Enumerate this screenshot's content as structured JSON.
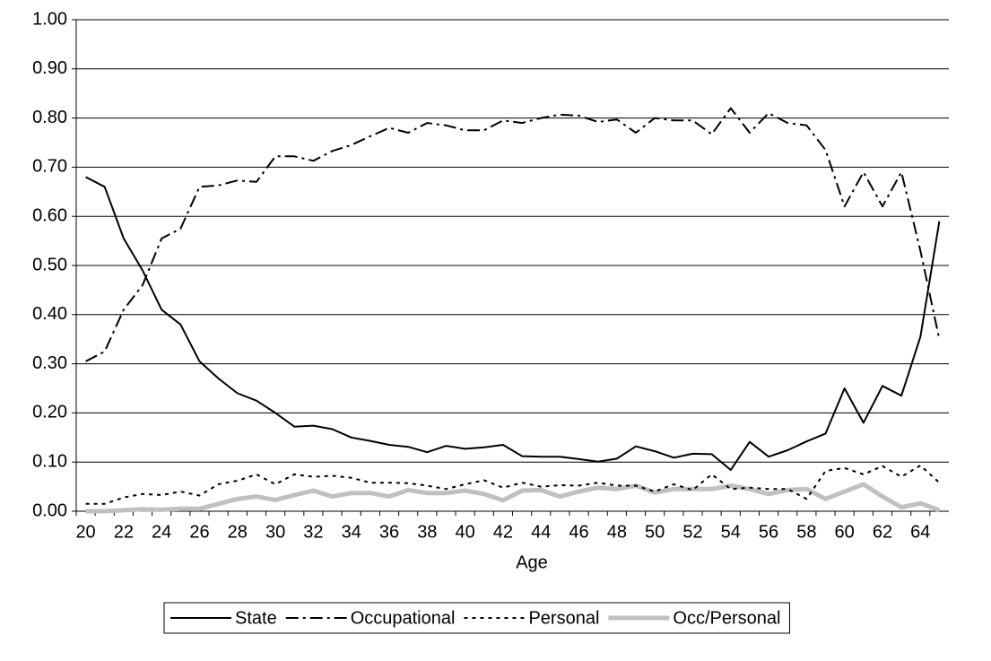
{
  "chart_data": {
    "type": "line",
    "x_label": "Age",
    "categories": [
      20,
      null,
      22,
      null,
      24,
      null,
      26,
      null,
      28,
      null,
      30,
      null,
      32,
      null,
      34,
      null,
      36,
      null,
      38,
      null,
      40,
      null,
      42,
      null,
      44,
      null,
      46,
      null,
      48,
      null,
      50,
      null,
      52,
      null,
      54,
      null,
      56,
      null,
      58,
      null,
      60,
      null,
      62,
      null,
      64,
      null
    ],
    "series": [
      {
        "name": "State",
        "color": "#000000",
        "style": "solid",
        "line_width": 2,
        "values": [
          0.68,
          0.66,
          0.555,
          0.49,
          0.41,
          0.38,
          0.305,
          0.27,
          0.24,
          0.225,
          0.2,
          0.172,
          0.174,
          0.167,
          0.15,
          0.143,
          0.135,
          0.131,
          0.12,
          0.133,
          0.127,
          0.13,
          0.135,
          0.112,
          0.111,
          0.111,
          0.106,
          0.101,
          0.107,
          0.132,
          0.122,
          0.109,
          0.117,
          0.116,
          0.084,
          0.141,
          0.111,
          0.124,
          0.142,
          0.158,
          0.25,
          0.18,
          0.255,
          0.235,
          0.355,
          0.59
        ]
      },
      {
        "name": "Occupational",
        "color": "#000000",
        "style": "dashdot",
        "line_width": 2,
        "values": [
          0.305,
          0.325,
          0.41,
          0.46,
          0.555,
          0.575,
          0.66,
          0.663,
          0.673,
          0.67,
          0.722,
          0.722,
          0.713,
          0.733,
          0.745,
          0.763,
          0.78,
          0.77,
          0.79,
          0.785,
          0.775,
          0.775,
          0.795,
          0.79,
          0.8,
          0.807,
          0.805,
          0.792,
          0.797,
          0.77,
          0.8,
          0.795,
          0.795,
          0.767,
          0.82,
          0.77,
          0.81,
          0.79,
          0.785,
          0.735,
          0.62,
          0.69,
          0.62,
          0.69,
          0.53,
          0.35
        ]
      },
      {
        "name": "Personal",
        "color": "#000000",
        "style": "dotted",
        "line_width": 2,
        "values": [
          0.015,
          0.015,
          0.028,
          0.035,
          0.033,
          0.04,
          0.032,
          0.055,
          0.062,
          0.075,
          0.055,
          0.075,
          0.07,
          0.072,
          0.068,
          0.058,
          0.058,
          0.057,
          0.052,
          0.045,
          0.055,
          0.063,
          0.048,
          0.058,
          0.05,
          0.053,
          0.052,
          0.058,
          0.052,
          0.052,
          0.04,
          0.055,
          0.043,
          0.075,
          0.045,
          0.048,
          0.045,
          0.045,
          0.025,
          0.082,
          0.088,
          0.075,
          0.092,
          0.07,
          0.093,
          0.058
        ]
      },
      {
        "name": "Occ/Personal",
        "color": "#c0c0c0",
        "style": "solid",
        "line_width": 5,
        "values": [
          0,
          0,
          0.002,
          0.004,
          0.003,
          0.005,
          0.005,
          0.015,
          0.025,
          0.03,
          0.023,
          0.033,
          0.042,
          0.03,
          0.037,
          0.037,
          0.03,
          0.043,
          0.037,
          0.037,
          0.042,
          0.035,
          0.022,
          0.042,
          0.043,
          0.03,
          0.04,
          0.048,
          0.045,
          0.052,
          0.038,
          0.045,
          0.045,
          0.045,
          0.052,
          0.045,
          0.035,
          0.043,
          0.045,
          0.025,
          0.04,
          0.055,
          0.03,
          0.008,
          0.016,
          0.002
        ]
      }
    ],
    "ylim": [
      0,
      1
    ],
    "yticks": [
      {
        "value": 0,
        "label": "0.00"
      },
      {
        "value": 0.1,
        "label": "0.10"
      },
      {
        "value": 0.2,
        "label": "0.20"
      },
      {
        "value": 0.3,
        "label": "0.30"
      },
      {
        "value": 0.4,
        "label": "0.40"
      },
      {
        "value": 0.5,
        "label": "0.50"
      },
      {
        "value": 0.6,
        "label": "0.60"
      },
      {
        "value": 0.7,
        "label": "0.70"
      },
      {
        "value": 0.8,
        "label": "0.80"
      },
      {
        "value": 0.9,
        "label": "0.90"
      },
      {
        "value": 1,
        "label": "1.00"
      }
    ],
    "grid": true,
    "legend": "bottom"
  }
}
